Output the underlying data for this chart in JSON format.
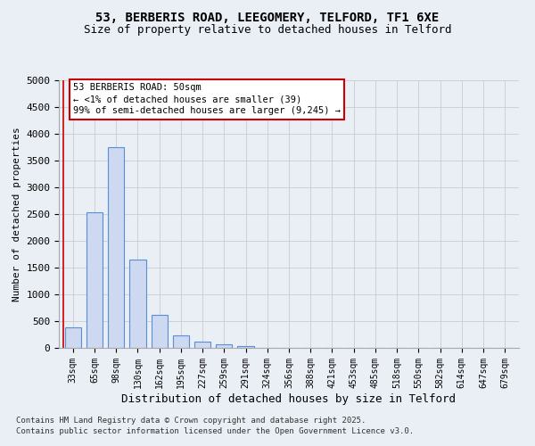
{
  "title_line1": "53, BERBERIS ROAD, LEEGOMERY, TELFORD, TF1 6XE",
  "title_line2": "Size of property relative to detached houses in Telford",
  "xlabel": "Distribution of detached houses by size in Telford",
  "ylabel": "Number of detached properties",
  "categories": [
    "33sqm",
    "65sqm",
    "98sqm",
    "130sqm",
    "162sqm",
    "195sqm",
    "227sqm",
    "259sqm",
    "291sqm",
    "324sqm",
    "356sqm",
    "388sqm",
    "421sqm",
    "453sqm",
    "485sqm",
    "518sqm",
    "550sqm",
    "582sqm",
    "614sqm",
    "647sqm",
    "679sqm"
  ],
  "values": [
    380,
    2530,
    3750,
    1650,
    620,
    230,
    110,
    60,
    40,
    0,
    0,
    0,
    0,
    0,
    0,
    0,
    0,
    0,
    0,
    0,
    0
  ],
  "bar_color": "#ccd9f0",
  "bar_edge_color": "#5b8ed6",
  "annotation_text": "53 BERBERIS ROAD: 50sqm\n← <1% of detached houses are smaller (39)\n99% of semi-detached houses are larger (9,245) →",
  "annotation_box_color": "#ffffff",
  "annotation_box_edge_color": "#cc0000",
  "vline_color": "#cc0000",
  "ylim": [
    0,
    5000
  ],
  "yticks": [
    0,
    500,
    1000,
    1500,
    2000,
    2500,
    3000,
    3500,
    4000,
    4500,
    5000
  ],
  "grid_color": "#cccccc",
  "bg_color": "#eaeef5",
  "plot_bg_color": "#eaeef5",
  "footnote_line1": "Contains HM Land Registry data © Crown copyright and database right 2025.",
  "footnote_line2": "Contains public sector information licensed under the Open Government Licence v3.0."
}
